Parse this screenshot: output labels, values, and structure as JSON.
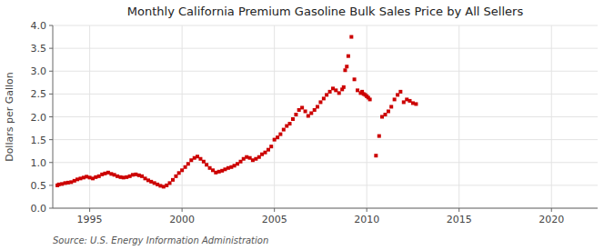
{
  "chart_data": {
    "type": "scatter",
    "title": "Monthly California Premium Gasoline Bulk Sales Price by All Sellers",
    "ylabel": "Dollars per Gallon",
    "annotation": "Source: U.S. Energy Information Administration",
    "color": "#cc0000",
    "marker": "square",
    "grid": true,
    "xlim": [
      1993.0,
      2022.5
    ],
    "ylim": [
      0.0,
      4.0
    ],
    "xticks": [
      1995,
      2000,
      2005,
      2010,
      2015,
      2020
    ],
    "yticks": [
      {
        "value": 0.0,
        "label": "0.0"
      },
      0.5,
      {
        "value": 1.0,
        "label": "1.0"
      },
      1.5,
      {
        "value": 2.0,
        "label": "2.0"
      },
      2.5,
      {
        "value": 3.0,
        "label": "3.0"
      },
      3.5,
      {
        "value": 4.0,
        "label": "4.0"
      }
    ],
    "x": [
      1993.25,
      1993.33,
      1993.5,
      1993.67,
      1993.83,
      1994.0,
      1994.17,
      1994.33,
      1994.5,
      1994.67,
      1994.83,
      1995.0,
      1995.17,
      1995.33,
      1995.5,
      1995.67,
      1995.83,
      1996.0,
      1996.17,
      1996.33,
      1996.5,
      1996.67,
      1996.83,
      1997.0,
      1997.17,
      1997.33,
      1997.5,
      1997.67,
      1997.83,
      1998.0,
      1998.17,
      1998.33,
      1998.5,
      1998.67,
      1998.83,
      1999.0,
      1999.17,
      1999.33,
      1999.5,
      1999.67,
      1999.83,
      2000.0,
      2000.17,
      2000.33,
      2000.5,
      2000.67,
      2000.83,
      2001.0,
      2001.17,
      2001.33,
      2001.5,
      2001.67,
      2001.83,
      2002.0,
      2002.17,
      2002.33,
      2002.5,
      2002.67,
      2002.83,
      2003.0,
      2003.17,
      2003.33,
      2003.5,
      2003.67,
      2003.83,
      2004.0,
      2004.17,
      2004.33,
      2004.5,
      2004.67,
      2004.83,
      2005.0,
      2005.17,
      2005.33,
      2005.5,
      2005.67,
      2005.83,
      2006.0,
      2006.17,
      2006.33,
      2006.5,
      2006.67,
      2006.83,
      2007.0,
      2007.17,
      2007.33,
      2007.5,
      2007.67,
      2007.83,
      2008.0,
      2008.17,
      2008.33,
      2008.5,
      2008.67,
      2008.75,
      2008.83,
      2008.92,
      2009.0,
      2009.17,
      2009.33,
      2009.5,
      2009.67,
      2009.75,
      2009.83,
      2009.92,
      2010.0,
      2010.08,
      2010.17,
      2010.5,
      2010.67,
      2010.83,
      2011.0,
      2011.17,
      2011.33,
      2011.5,
      2011.67,
      2011.83,
      2012.0,
      2012.17,
      2012.33,
      2012.5,
      2012.67
    ],
    "values": [
      0.5,
      0.52,
      0.53,
      0.55,
      0.56,
      0.57,
      0.6,
      0.63,
      0.65,
      0.67,
      0.69,
      0.67,
      0.65,
      0.68,
      0.7,
      0.74,
      0.76,
      0.78,
      0.75,
      0.73,
      0.7,
      0.68,
      0.67,
      0.68,
      0.7,
      0.73,
      0.74,
      0.72,
      0.7,
      0.65,
      0.61,
      0.58,
      0.55,
      0.52,
      0.49,
      0.47,
      0.5,
      0.55,
      0.62,
      0.7,
      0.77,
      0.83,
      0.9,
      0.97,
      1.05,
      1.1,
      1.13,
      1.08,
      1.02,
      0.95,
      0.88,
      0.83,
      0.78,
      0.8,
      0.82,
      0.85,
      0.88,
      0.9,
      0.93,
      0.97,
      1.02,
      1.08,
      1.12,
      1.1,
      1.05,
      1.08,
      1.12,
      1.18,
      1.22,
      1.28,
      1.35,
      1.5,
      1.55,
      1.62,
      1.72,
      1.8,
      1.85,
      1.95,
      2.05,
      2.15,
      2.2,
      2.12,
      2.02,
      2.08,
      2.15,
      2.22,
      2.32,
      2.4,
      2.48,
      2.55,
      2.62,
      2.58,
      2.52,
      2.6,
      2.65,
      3.02,
      3.1,
      3.33,
      3.75,
      2.82,
      2.58,
      2.52,
      2.55,
      2.5,
      2.48,
      2.45,
      2.42,
      2.38,
      1.15,
      1.58,
      2.0,
      2.05,
      2.12,
      2.22,
      2.38,
      2.48,
      2.55,
      2.32,
      2.38,
      2.35,
      2.3,
      2.28
    ]
  }
}
